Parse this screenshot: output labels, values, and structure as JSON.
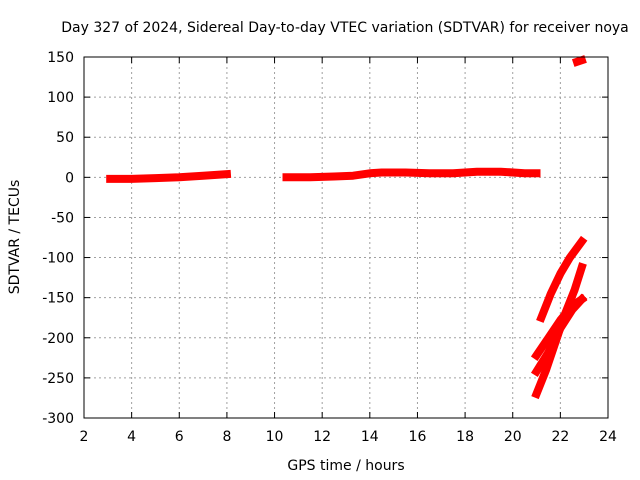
{
  "chart_data": {
    "type": "scatter",
    "title": "Day 327 of 2024, Sidereal Day-to-day VTEC variation (SDTVAR) for receiver noya",
    "xlabel": "GPS time / hours",
    "ylabel": "SDTVAR / TECUs",
    "xlim": [
      2,
      24
    ],
    "ylim": [
      -300,
      150
    ],
    "xticks": [
      2,
      4,
      6,
      8,
      10,
      12,
      14,
      16,
      18,
      20,
      22,
      24
    ],
    "yticks": [
      -300,
      -250,
      -200,
      -150,
      -100,
      -50,
      0,
      50,
      100,
      150
    ],
    "grid": true,
    "color": "#ff0000",
    "series": [
      {
        "x": [
          3.1,
          4.0,
          5.0,
          6.0,
          7.0,
          8.0
        ],
        "y": [
          -2,
          -2,
          -1,
          0,
          2,
          4
        ]
      },
      {
        "x": [
          10.5,
          11.5,
          12.5,
          13.3,
          14.0,
          14.5,
          15.5,
          16.5,
          17.5,
          18.5,
          19.5,
          20.5,
          21.0
        ],
        "y": [
          0,
          0,
          1,
          2,
          5,
          6,
          6,
          5,
          5,
          7,
          7,
          5,
          5
        ]
      },
      {
        "x": [
          21.2,
          21.6,
          22.0,
          22.4,
          22.9
        ],
        "y": [
          -175,
          -145,
          -120,
          -100,
          -80
        ]
      },
      {
        "x": [
          21.0,
          21.4,
          21.8,
          22.2,
          22.6,
          22.9
        ],
        "y": [
          -270,
          -240,
          -205,
          -170,
          -140,
          -112
        ]
      },
      {
        "x": [
          21.0,
          21.5,
          22.0,
          22.5,
          22.9
        ],
        "y": [
          -242,
          -218,
          -188,
          -165,
          -152
        ]
      },
      {
        "x": [
          21.0,
          21.5,
          22.0,
          22.5,
          22.9
        ],
        "y": [
          -222,
          -200,
          -178,
          -160,
          -152
        ]
      },
      {
        "x": [
          22.7,
          22.9
        ],
        "y": [
          144,
          146
        ]
      }
    ]
  }
}
